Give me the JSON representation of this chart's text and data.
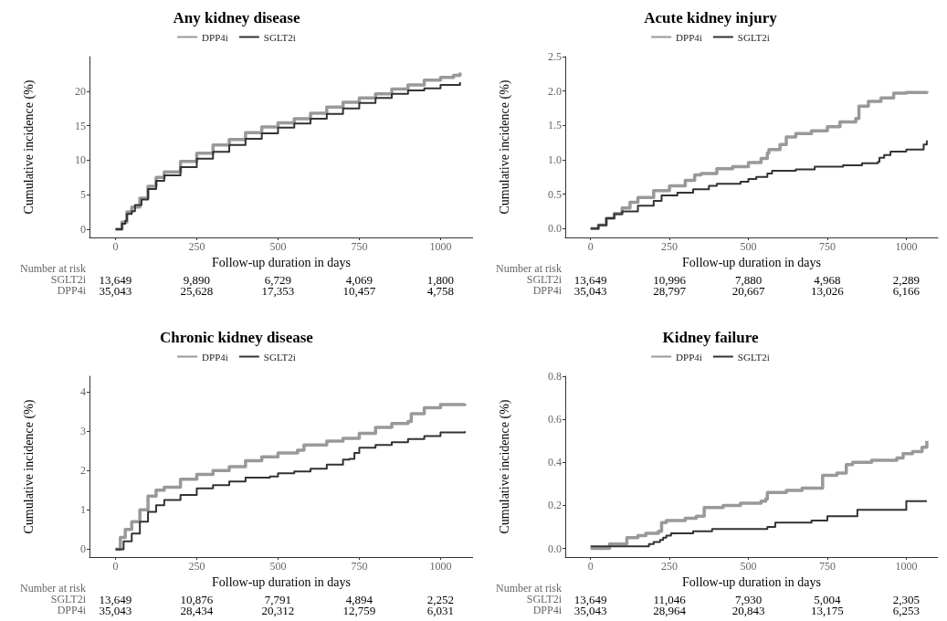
{
  "chart_data": [
    {
      "type": "step",
      "title": "Any kidney disease",
      "xlabel": "Follow-up duration in days",
      "ylabel": "Cumulative incidence (%)",
      "legend": "top",
      "grid": false,
      "marker": "none",
      "line_style": "solid",
      "xlim": [
        -80,
        1100
      ],
      "xticks": [
        0,
        250,
        500,
        750,
        1000
      ],
      "ylim": [
        -1.2,
        25
      ],
      "yticks": [
        0,
        5,
        10,
        15,
        20
      ],
      "series": [
        {
          "name": "DPP4i",
          "color": "#999999",
          "x": [
            0,
            20,
            35,
            50,
            75,
            100,
            125,
            150,
            200,
            250,
            300,
            350,
            400,
            450,
            500,
            550,
            600,
            650,
            700,
            750,
            800,
            850,
            900,
            950,
            1000,
            1040,
            1060
          ],
          "values": [
            0,
            1,
            2.5,
            3.2,
            4.5,
            6.2,
            7.5,
            8.3,
            9.8,
            11,
            12.2,
            13,
            14,
            14.8,
            15.4,
            16,
            16.8,
            17.7,
            18.4,
            19,
            19.6,
            20.3,
            20.9,
            21.6,
            22,
            22.3,
            22.7
          ]
        },
        {
          "name": "SGLT2i",
          "color": "#333333",
          "x": [
            0,
            20,
            30,
            35,
            50,
            60,
            80,
            100,
            125,
            150,
            200,
            250,
            300,
            350,
            400,
            450,
            500,
            550,
            600,
            650,
            700,
            750,
            800,
            850,
            900,
            950,
            1000,
            1060
          ],
          "values": [
            0,
            0.8,
            1.2,
            2.2,
            2.6,
            3.5,
            4.3,
            5.8,
            7,
            7.8,
            9,
            10.2,
            11.2,
            12.2,
            13.1,
            13.9,
            14.7,
            15.3,
            16,
            16.7,
            17.5,
            18.3,
            19,
            19.6,
            20.1,
            20.4,
            20.9,
            21.3
          ]
        }
      ],
      "annotations": [
        "Number at risk",
        "SGLT2i",
        "DPP4i",
        "13,649",
        "9,890",
        "6,729",
        "4,069",
        "1,800",
        "35,043",
        "25,628",
        "17,353",
        "10,457",
        "4,758"
      ]
    },
    {
      "type": "step",
      "title": "Acute kidney injury",
      "xlabel": "Follow-up duration in days",
      "ylabel": "Cumulative incidence (%)",
      "legend": "top",
      "grid": false,
      "marker": "none",
      "line_style": "solid",
      "xlim": [
        -80,
        1100
      ],
      "xticks": [
        0,
        250,
        500,
        750,
        1000
      ],
      "ylim": [
        -0.13,
        2.5
      ],
      "yticks": [
        {
          "value": 0,
          "label": "0.0"
        },
        {
          "value": 0.5,
          "label": "0.5"
        },
        {
          "value": 1,
          "label": "1.0"
        },
        {
          "value": 1.5,
          "label": "1.5"
        },
        {
          "value": 2,
          "label": "2.0"
        },
        {
          "value": 2.5,
          "label": "2.5"
        }
      ],
      "series": [
        {
          "name": "DPP4i",
          "color": "#999999",
          "x": [
            0,
            25,
            50,
            75,
            100,
            125,
            150,
            200,
            250,
            300,
            330,
            350,
            400,
            450,
            500,
            540,
            560,
            565,
            600,
            620,
            650,
            700,
            750,
            790,
            840,
            850,
            880,
            920,
            960,
            1000,
            1065
          ],
          "values": [
            0,
            0.05,
            0.15,
            0.22,
            0.3,
            0.38,
            0.45,
            0.55,
            0.62,
            0.7,
            0.78,
            0.8,
            0.87,
            0.9,
            0.96,
            1.02,
            1.1,
            1.15,
            1.22,
            1.33,
            1.38,
            1.42,
            1.48,
            1.55,
            1.6,
            1.78,
            1.85,
            1.9,
            1.97,
            1.98,
            2
          ]
        },
        {
          "name": "SGLT2i",
          "color": "#333333",
          "x": [
            0,
            25,
            50,
            75,
            100,
            150,
            200,
            225,
            275,
            325,
            375,
            400,
            475,
            500,
            525,
            560,
            575,
            650,
            710,
            800,
            860,
            910,
            915,
            930,
            950,
            1000,
            1055,
            1065
          ],
          "values": [
            0,
            0.05,
            0.15,
            0.21,
            0.25,
            0.33,
            0.4,
            0.48,
            0.52,
            0.57,
            0.62,
            0.65,
            0.68,
            0.72,
            0.75,
            0.8,
            0.84,
            0.86,
            0.9,
            0.92,
            0.95,
            0.97,
            1.03,
            1.07,
            1.12,
            1.15,
            1.22,
            1.28
          ]
        }
      ],
      "annotations": [
        "Number at risk",
        "SGLT2i",
        "DPP4i",
        "13,649",
        "10,996",
        "7,880",
        "4,968",
        "2,289",
        "35,043",
        "28,797",
        "20,667",
        "13,026",
        "6,166"
      ]
    },
    {
      "type": "step",
      "title": "Chronic kidney disease",
      "xlabel": "Follow-up duration in days",
      "ylabel": "Cumulative incidence (%)",
      "legend": "top",
      "grid": false,
      "marker": "none",
      "line_style": "solid",
      "xlim": [
        -80,
        1100
      ],
      "xticks": [
        0,
        250,
        500,
        750,
        1000
      ],
      "ylim": [
        -0.2,
        4.4
      ],
      "yticks": [
        0,
        1,
        2,
        3,
        4
      ],
      "series": [
        {
          "name": "DPP4i",
          "color": "#999999",
          "x": [
            0,
            15,
            30,
            50,
            75,
            100,
            125,
            150,
            200,
            250,
            300,
            350,
            400,
            450,
            500,
            560,
            580,
            650,
            700,
            750,
            800,
            850,
            900,
            910,
            950,
            1000,
            1075
          ],
          "values": [
            0,
            0.3,
            0.5,
            0.7,
            1,
            1.35,
            1.5,
            1.58,
            1.78,
            1.9,
            2,
            2.1,
            2.25,
            2.35,
            2.45,
            2.52,
            2.65,
            2.75,
            2.82,
            2.95,
            3.1,
            3.2,
            3.25,
            3.45,
            3.6,
            3.68,
            3.7
          ]
        },
        {
          "name": "SGLT2i",
          "color": "#333333",
          "x": [
            0,
            25,
            50,
            75,
            100,
            125,
            150,
            200,
            250,
            300,
            350,
            400,
            475,
            500,
            550,
            600,
            650,
            700,
            720,
            735,
            750,
            800,
            850,
            900,
            950,
            1000,
            1075
          ],
          "values": [
            0,
            0.2,
            0.4,
            0.7,
            0.95,
            1.12,
            1.25,
            1.38,
            1.55,
            1.63,
            1.72,
            1.82,
            1.85,
            1.93,
            1.98,
            2.05,
            2.15,
            2.28,
            2.3,
            2.45,
            2.58,
            2.65,
            2.72,
            2.8,
            2.88,
            2.97,
            3
          ]
        }
      ],
      "annotations": [
        "Number at risk",
        "SGLT2i",
        "DPP4i",
        "13,649",
        "10,876",
        "7,791",
        "4,894",
        "2,252",
        "35,043",
        "28,434",
        "20,312",
        "12,759",
        "6,031"
      ]
    },
    {
      "type": "step",
      "title": "Kidney failure",
      "xlabel": "Follow-up duration in days",
      "ylabel": "Cumulative incidence (%)",
      "legend": "top",
      "grid": false,
      "marker": "none",
      "line_style": "solid",
      "xlim": [
        -80,
        1100
      ],
      "xticks": [
        0,
        250,
        500,
        750,
        1000
      ],
      "ylim": [
        -0.04,
        0.8
      ],
      "yticks": [
        {
          "value": 0,
          "label": "0.0"
        },
        0.2,
        0.4,
        0.6,
        0.8
      ],
      "series": [
        {
          "name": "DPP4i",
          "color": "#999999",
          "x": [
            0,
            60,
            115,
            150,
            175,
            215,
            225,
            240,
            300,
            335,
            360,
            420,
            475,
            540,
            555,
            560,
            620,
            670,
            735,
            780,
            810,
            830,
            890,
            970,
            990,
            1020,
            1050,
            1065
          ],
          "values": [
            0,
            0.02,
            0.05,
            0.06,
            0.07,
            0.08,
            0.12,
            0.13,
            0.14,
            0.15,
            0.19,
            0.2,
            0.21,
            0.22,
            0.23,
            0.26,
            0.27,
            0.28,
            0.34,
            0.35,
            0.39,
            0.4,
            0.41,
            0.42,
            0.44,
            0.45,
            0.47,
            0.5
          ]
        },
        {
          "name": "SGLT2i",
          "color": "#333333",
          "x": [
            0,
            175,
            185,
            200,
            220,
            230,
            240,
            255,
            325,
            385,
            560,
            585,
            700,
            750,
            845,
            1000,
            1065
          ],
          "values": [
            0.01,
            0.01,
            0.02,
            0.03,
            0.04,
            0.05,
            0.06,
            0.07,
            0.08,
            0.09,
            0.1,
            0.12,
            0.13,
            0.15,
            0.18,
            0.22,
            0.22
          ]
        }
      ],
      "annotations": [
        "Number at risk",
        "SGLT2i",
        "DPP4i",
        "13,649",
        "11,046",
        "7,930",
        "5,004",
        "2,305",
        "35,043",
        "28,964",
        "20,843",
        "13,175",
        "6,253"
      ]
    }
  ]
}
